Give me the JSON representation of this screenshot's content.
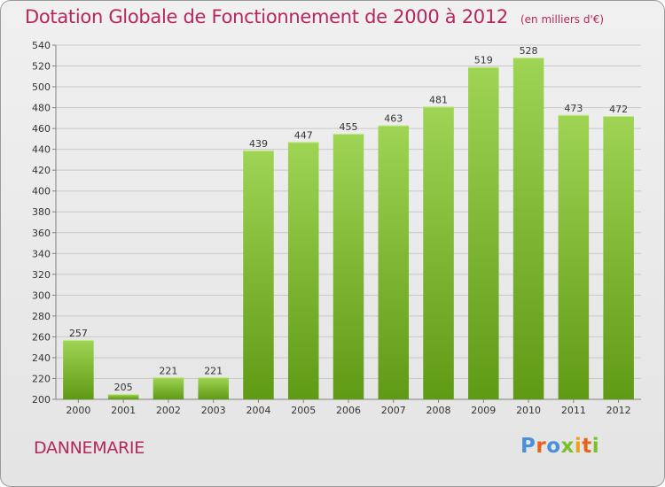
{
  "title": "Dotation Globale de Fonctionnement de 2000 à 2012",
  "unit_note": "(en milliers d'€)",
  "commune": "DANNEMARIE",
  "logo": {
    "text": "Proxiti",
    "letters": [
      "P",
      "r",
      "o",
      "x",
      "i",
      "t",
      "i"
    ],
    "colors": [
      "#4a90d9",
      "#e8601c",
      "#7bbf2a",
      "#f0a020"
    ]
  },
  "colors": {
    "title": "#b5275e",
    "bar_top": "#9fd454",
    "bar_bottom": "#5f9a15",
    "grid": "#c8c8c8",
    "axis": "#808080",
    "background": "#e9e9e9"
  },
  "chart_data": {
    "type": "bar",
    "title": "Dotation Globale de Fonctionnement de 2000 à 2012",
    "subtitle": "(en milliers d'€)",
    "xlabel": "",
    "ylabel": "",
    "categories": [
      "2000",
      "2001",
      "2002",
      "2003",
      "2004",
      "2005",
      "2006",
      "2007",
      "2008",
      "2009",
      "2010",
      "2011",
      "2012"
    ],
    "values": [
      257,
      205,
      221,
      221,
      439,
      447,
      455,
      463,
      481,
      519,
      528,
      473,
      472
    ],
    "ylim": [
      200,
      540
    ],
    "yticks": [
      200,
      220,
      240,
      260,
      280,
      300,
      320,
      340,
      360,
      380,
      400,
      420,
      440,
      460,
      480,
      500,
      520,
      540
    ],
    "grid": true,
    "legend": "none",
    "data_labels": true
  }
}
